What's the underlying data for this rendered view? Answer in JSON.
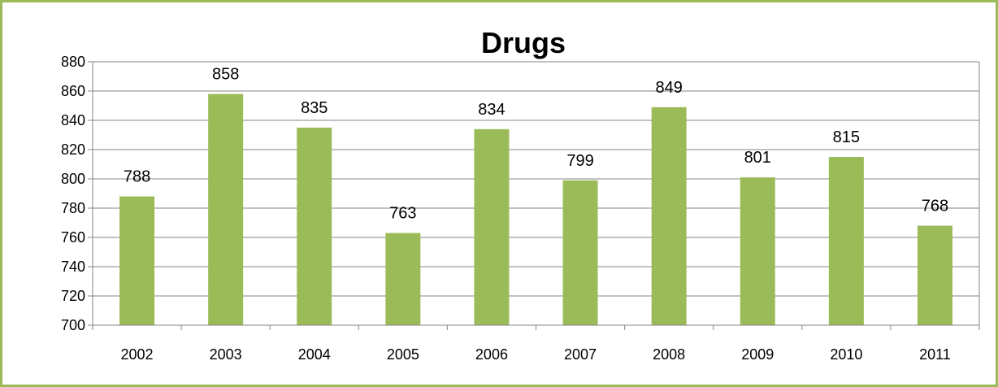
{
  "chart_data": {
    "type": "bar",
    "title": "Drugs",
    "xlabel": "",
    "ylabel": "",
    "categories": [
      "2002",
      "2003",
      "2004",
      "2005",
      "2006",
      "2007",
      "2008",
      "2009",
      "2010",
      "2011"
    ],
    "values": [
      788,
      858,
      835,
      763,
      834,
      799,
      849,
      801,
      815,
      768
    ],
    "ylim": [
      700,
      880
    ],
    "yticks": [
      700,
      720,
      740,
      760,
      780,
      800,
      820,
      840,
      860,
      880
    ],
    "grid": true,
    "legend": "none",
    "colors": {
      "bar": "#9bbb59",
      "frame": "#9bbb59",
      "grid": "#868686",
      "axis": "#868686"
    }
  }
}
